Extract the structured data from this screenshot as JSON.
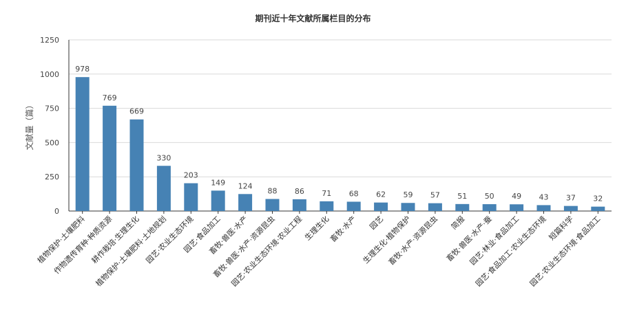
{
  "chart_data": {
    "type": "bar",
    "title": "期刊近十年文献所属栏目的分布",
    "xlabel": "",
    "ylabel": "文献量（篇）",
    "ylim": [
      0,
      1250
    ],
    "yticks": [
      0,
      250,
      500,
      750,
      1000,
      1250
    ],
    "grid": true,
    "bar_color": "#4682b4",
    "categories": [
      "植物保护·土壤肥料",
      "作物遗传育种·种质资源",
      "耕作栽培·生理生化",
      "植物保护·土壤肥料·土地规划",
      "园艺·农业生态环境",
      "园艺·食品加工",
      "畜牧·兽医·水产",
      "畜牧·兽医·水产·资源昆虫",
      "园艺·农业生态环境·农业工程",
      "生理生化",
      "畜牧·水产",
      "园艺",
      "生理生化·植物保护",
      "畜牧·水产·资源昆虫",
      "简报",
      "畜牧·兽医·水产·蚕",
      "园艺·林业·食品加工",
      "园艺·食品加工·农业生态环境",
      "短篇科学",
      "园艺·农业生态环境·食品加工"
    ],
    "values": [
      978,
      769,
      669,
      330,
      203,
      149,
      124,
      88,
      86,
      71,
      68,
      62,
      59,
      57,
      51,
      50,
      49,
      43,
      37,
      32
    ]
  }
}
